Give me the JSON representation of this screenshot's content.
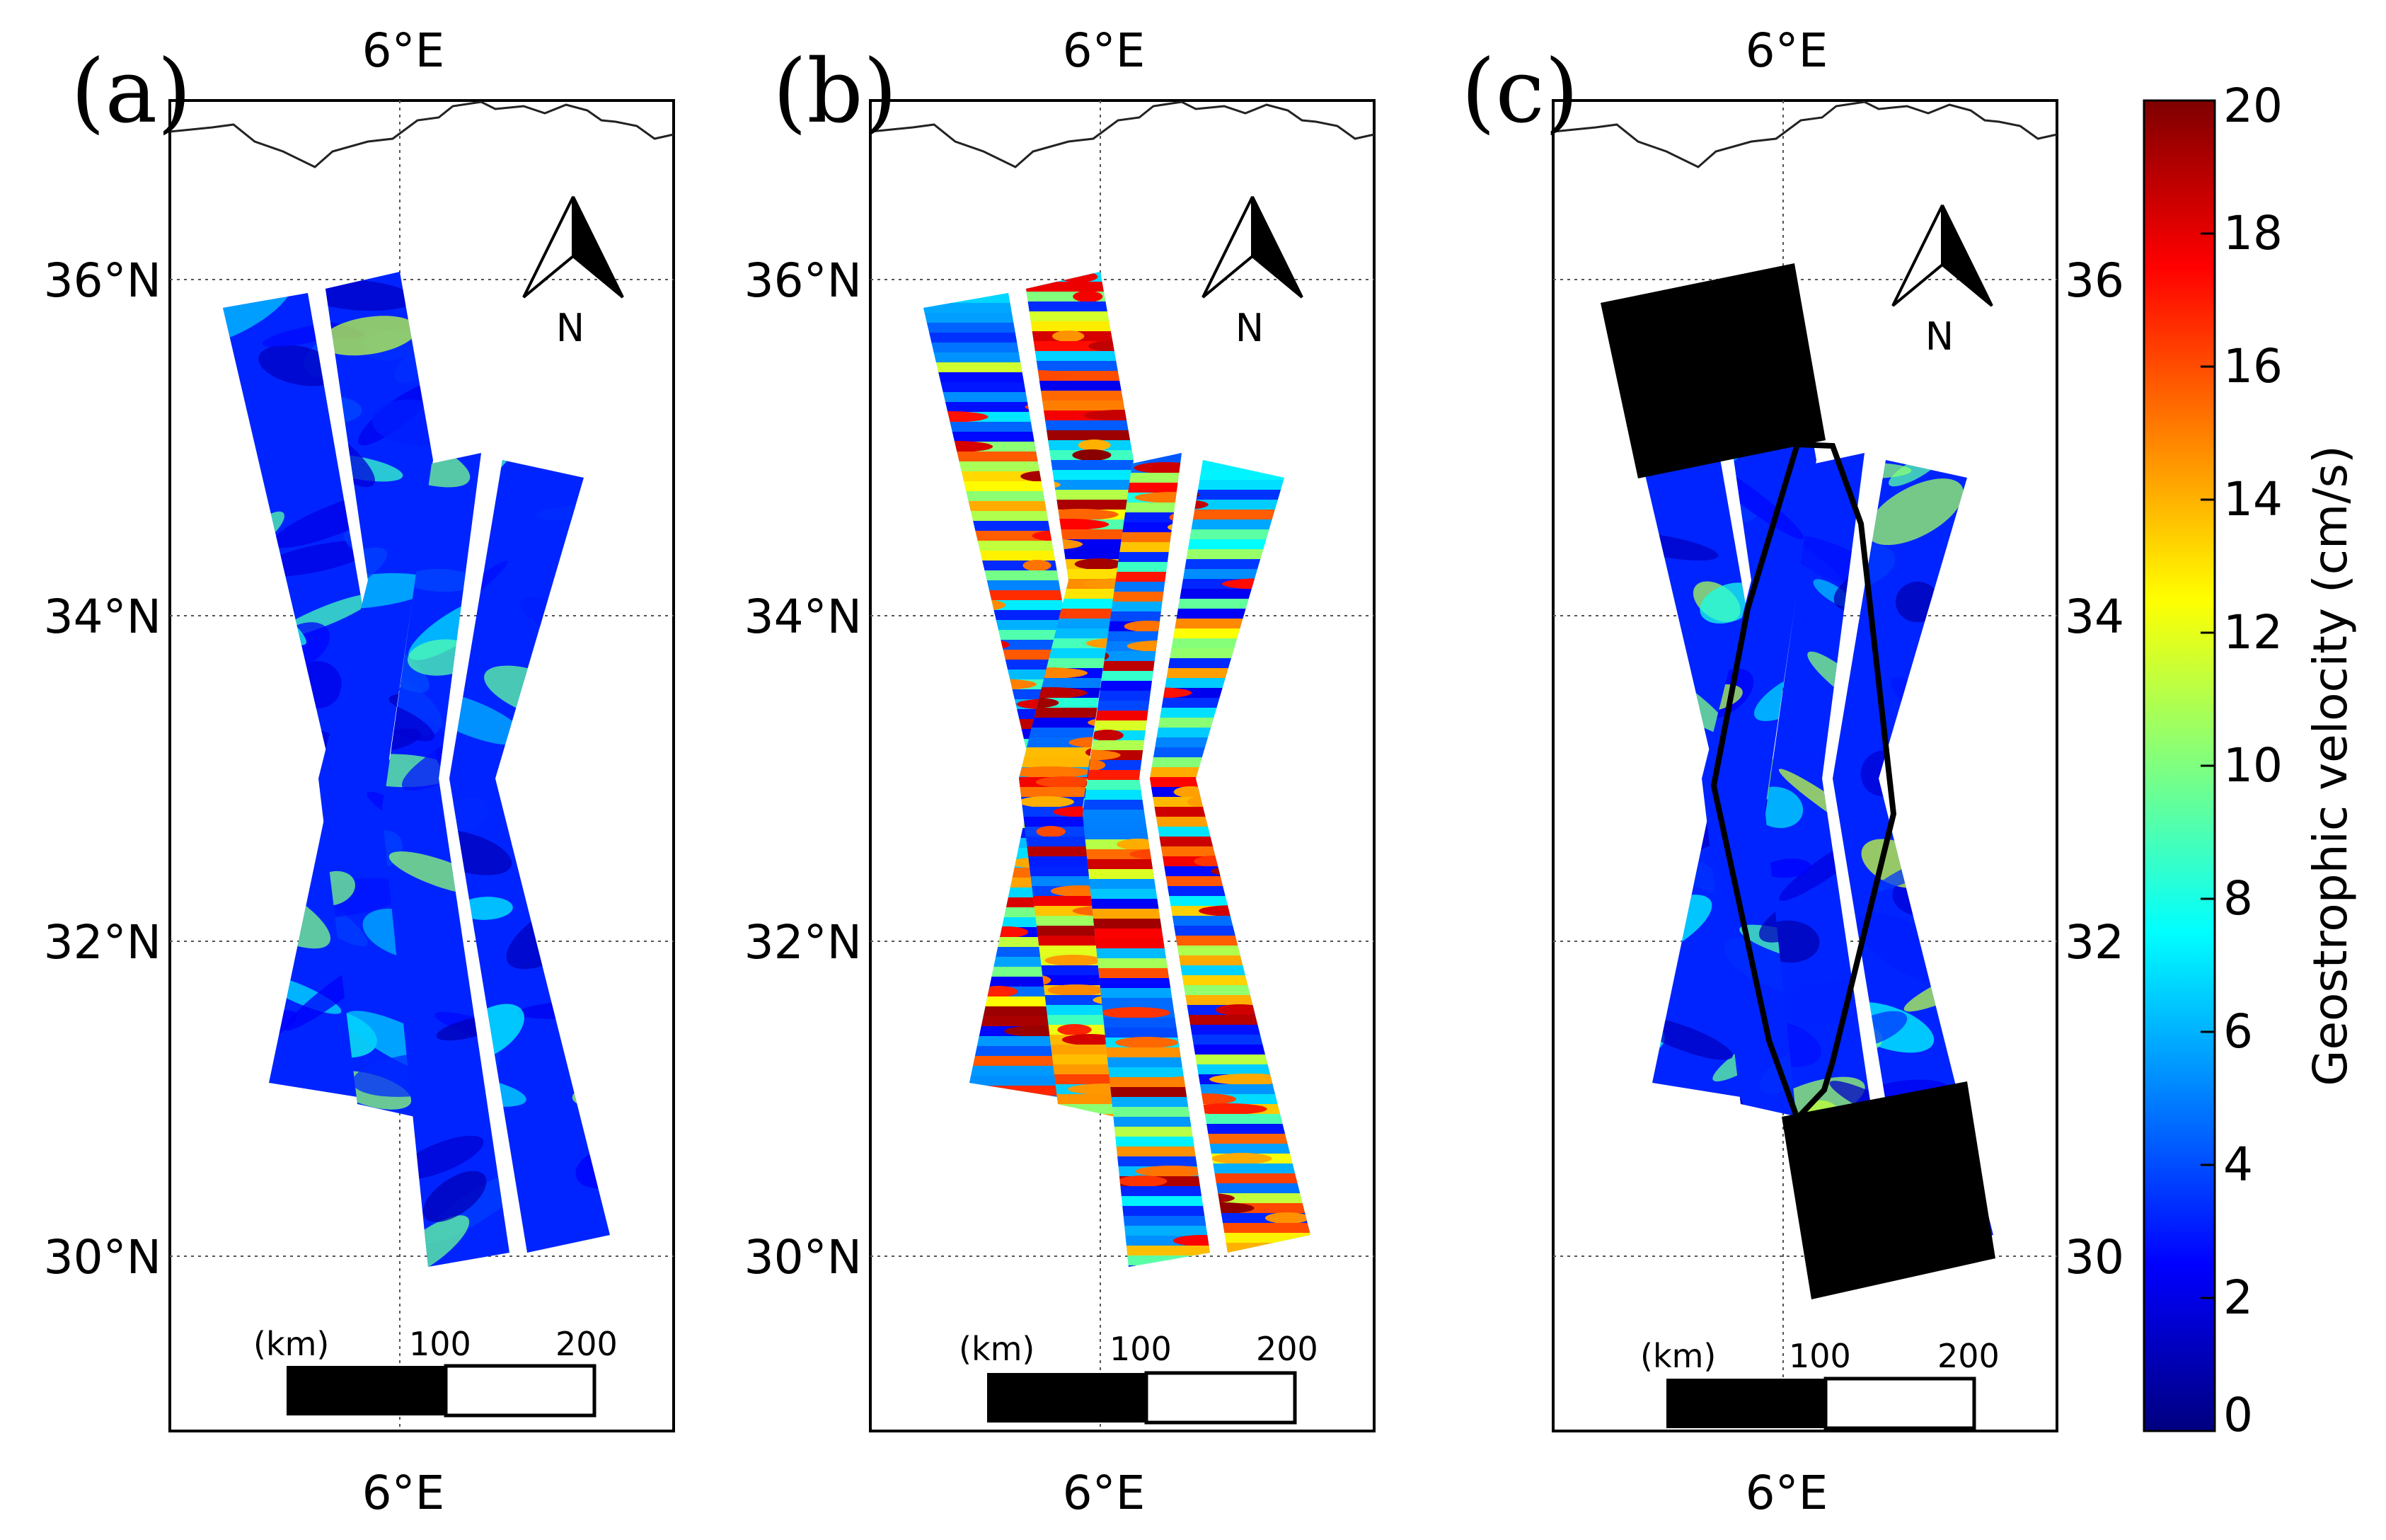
{
  "panels": [
    {
      "label": "(a)",
      "top_lon": "6°E",
      "bottom_lon": "6°E",
      "lat_labels": [
        "36°N",
        "34°N",
        "32°N",
        "30°N"
      ],
      "lat_side": "left",
      "north": "N",
      "scale": {
        "unit": "(km)",
        "mid": "100",
        "end": "200"
      },
      "variant": "smooth"
    },
    {
      "label": "(b)",
      "top_lon": "6°E",
      "bottom_lon": "6°E",
      "lat_labels": [
        "36°N",
        "34°N",
        "32°N",
        "30°N"
      ],
      "lat_side": "left",
      "north": "N",
      "scale": {
        "unit": "(km)",
        "mid": "100",
        "end": "200"
      },
      "variant": "noisy"
    },
    {
      "label": "(c)",
      "top_lon": "6°E",
      "bottom_lon": "6°E",
      "lat_labels": [
        "36",
        "34",
        "32",
        "30"
      ],
      "lat_side": "right",
      "north": "N",
      "scale": {
        "unit": "(km)",
        "mid": "100",
        "end": "200"
      },
      "variant": "masked"
    }
  ],
  "colorbar": {
    "label": "Geostrophic velocity (cm/s)",
    "ticks": [
      "0",
      "2",
      "4",
      "6",
      "8",
      "10",
      "12",
      "14",
      "16",
      "18",
      "20"
    ],
    "min": 0,
    "max": 20,
    "colormap": [
      "#00007f",
      "#0000ff",
      "#007fff",
      "#00ffff",
      "#7fff7f",
      "#ffff00",
      "#ff7f00",
      "#ff0000",
      "#7f0000"
    ]
  },
  "colors": {
    "frame": "#000000",
    "grid": "#555555",
    "mask": "#000000"
  }
}
